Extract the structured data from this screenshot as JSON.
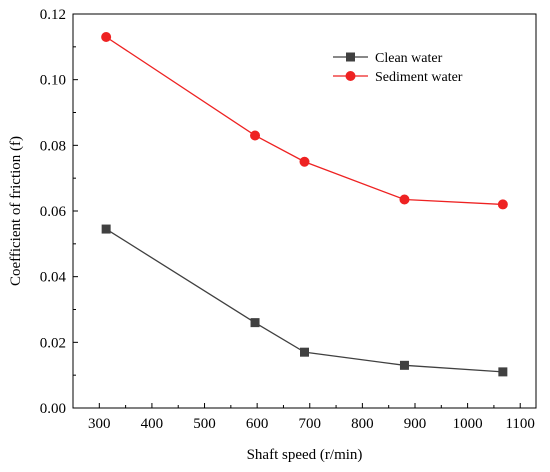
{
  "chart_data": {
    "type": "line",
    "title": "",
    "xlabel": "Shaft speed (r/min)",
    "ylabel": "Coefficient of friction (f)",
    "xlim": [
      250,
      1130
    ],
    "ylim": [
      0,
      0.12
    ],
    "xticks": [
      300,
      400,
      500,
      600,
      700,
      800,
      900,
      1000,
      1100
    ],
    "yticks": [
      0.0,
      0.02,
      0.04,
      0.06,
      0.08,
      0.1,
      0.12
    ],
    "ytick_labels": [
      "0.00",
      "0.02",
      "0.04",
      "0.06",
      "0.08",
      "0.10",
      "0.12"
    ],
    "grid": false,
    "legend_position": "top-right",
    "series": [
      {
        "name": "Clean water",
        "color": "#404040",
        "marker": "square",
        "x": [
          313,
          596,
          690,
          880,
          1067
        ],
        "y": [
          0.0545,
          0.026,
          0.017,
          0.013,
          0.011
        ]
      },
      {
        "name": "Sediment water",
        "color": "#ee2222",
        "marker": "circle",
        "x": [
          313,
          596,
          690,
          880,
          1067
        ],
        "y": [
          0.113,
          0.083,
          0.075,
          0.0635,
          0.062
        ]
      }
    ]
  }
}
